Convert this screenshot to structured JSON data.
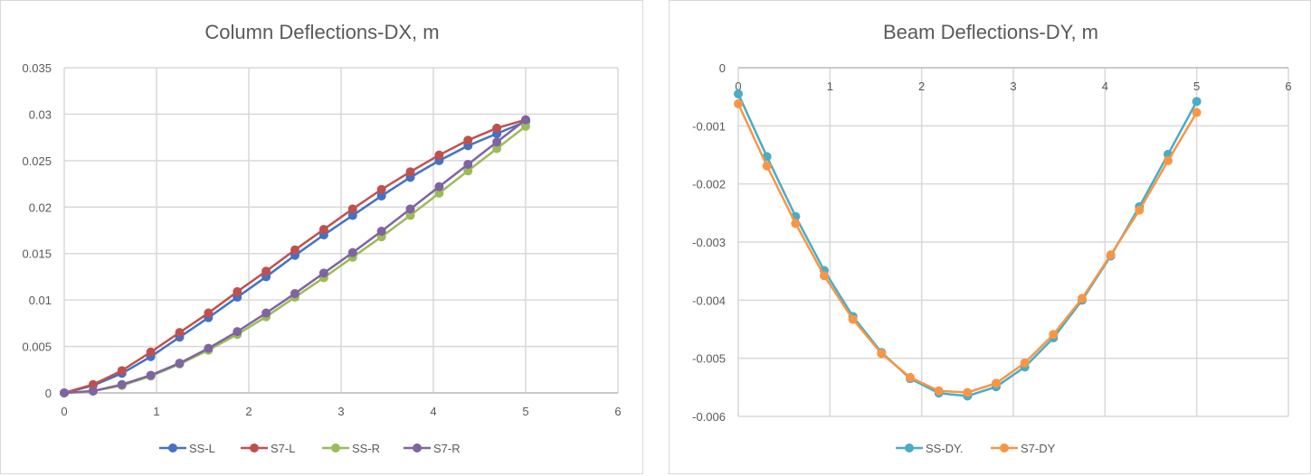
{
  "chart_data": [
    {
      "type": "line",
      "title": "Column Deflections-DX, m",
      "xlim": [
        0,
        6
      ],
      "ylim": [
        0,
        0.035
      ],
      "xticks": [
        "0",
        "1",
        "2",
        "3",
        "4",
        "5",
        "6"
      ],
      "yticks": [
        "0",
        "0.005",
        "0.01",
        "0.015",
        "0.02",
        "0.025",
        "0.03",
        "0.035"
      ],
      "grid": true,
      "legend": "bottom",
      "markers": true,
      "x": [
        0,
        0.3125,
        0.625,
        0.9375,
        1.25,
        1.5625,
        1.875,
        2.1875,
        2.5,
        2.8125,
        3.125,
        3.4375,
        3.75,
        4.0625,
        4.375,
        4.6875,
        5
      ],
      "series": [
        {
          "name": "SS-L",
          "color": "#4472C4",
          "values": [
            0,
            0.0008,
            0.0021,
            0.0039,
            0.006,
            0.0081,
            0.0103,
            0.0125,
            0.0148,
            0.017,
            0.0191,
            0.0212,
            0.0232,
            0.025,
            0.0266,
            0.0279,
            0.0292
          ]
        },
        {
          "name": "S7-L",
          "color": "#C0504D",
          "values": [
            0,
            0.0009,
            0.0024,
            0.0044,
            0.0065,
            0.0086,
            0.0109,
            0.0131,
            0.0154,
            0.0176,
            0.0198,
            0.0219,
            0.0238,
            0.0256,
            0.0272,
            0.0285,
            0.0294
          ]
        },
        {
          "name": "SS-R",
          "color": "#9BBB59",
          "values": [
            0,
            0.0002,
            0.0008,
            0.0018,
            0.0031,
            0.0046,
            0.0063,
            0.0082,
            0.0103,
            0.0124,
            0.0146,
            0.0168,
            0.0191,
            0.0215,
            0.0239,
            0.0263,
            0.0287
          ]
        },
        {
          "name": "S7-R",
          "color": "#8064A2",
          "values": [
            0,
            0.0002,
            0.0009,
            0.0019,
            0.0032,
            0.0048,
            0.0066,
            0.0086,
            0.0107,
            0.0129,
            0.0151,
            0.0174,
            0.0198,
            0.0222,
            0.0246,
            0.027,
            0.0294
          ]
        }
      ]
    },
    {
      "type": "line",
      "title": "Beam Deflections-DY, m",
      "xlim": [
        0,
        6
      ],
      "ylim": [
        -0.006,
        0
      ],
      "xticks": [
        "0",
        "1",
        "2",
        "3",
        "4",
        "5",
        "6"
      ],
      "yticks": [
        "-0.006",
        "-0.005",
        "-0.004",
        "-0.003",
        "-0.002",
        "-0.001",
        "0"
      ],
      "grid": true,
      "legend": "bottom",
      "markers": true,
      "x": [
        0,
        0.3125,
        0.625,
        0.9375,
        1.25,
        1.5625,
        1.875,
        2.1875,
        2.5,
        2.8125,
        3.125,
        3.4375,
        3.75,
        4.0625,
        4.375,
        4.6875,
        5
      ],
      "series": [
        {
          "name": "SS-DY.",
          "color": "#4BACC6",
          "values": [
            -0.00045,
            -0.00153,
            -0.00256,
            -0.00349,
            -0.00428,
            -0.0049,
            -0.00535,
            -0.0056,
            -0.00565,
            -0.00549,
            -0.00515,
            -0.00465,
            -0.004,
            -0.00324,
            -0.00239,
            -0.00149,
            -0.00058
          ]
        },
        {
          "name": "S7-DY",
          "color": "#F79646",
          "values": [
            -0.00062,
            -0.00169,
            -0.00268,
            -0.00358,
            -0.00433,
            -0.00492,
            -0.00533,
            -0.00556,
            -0.00559,
            -0.00543,
            -0.00508,
            -0.00459,
            -0.00397,
            -0.00322,
            -0.00245,
            -0.0016,
            -0.00077
          ]
        }
      ]
    }
  ]
}
